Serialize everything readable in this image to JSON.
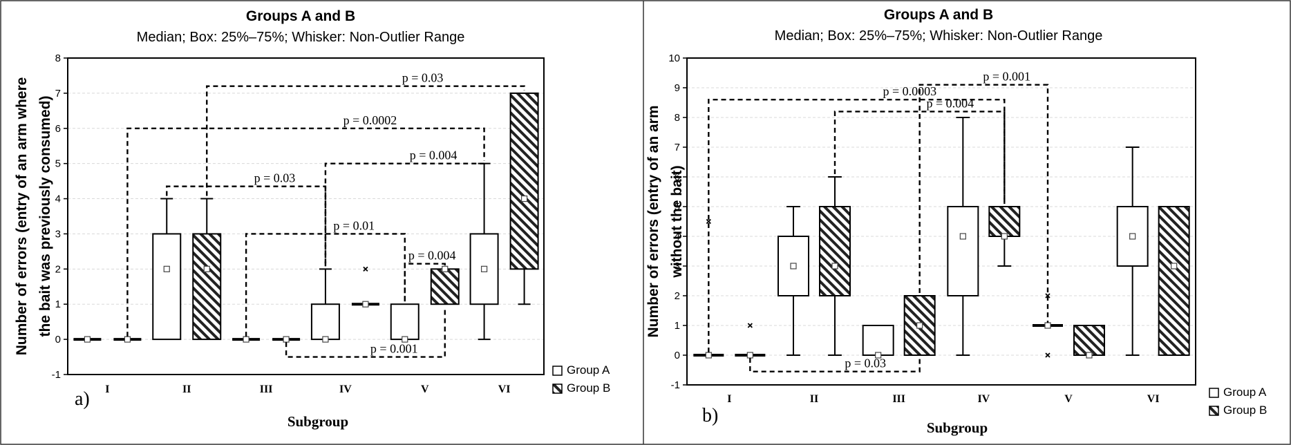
{
  "chart_data": [
    {
      "type": "box",
      "panel_label": "a)",
      "title": "Groups A and B",
      "subtitle": "Median; Box: 25%–75%; Whisker: Non-Outlier Range",
      "xlabel": "Subgroup",
      "ylabel_lines": [
        "Number of errors (entry of an arm where",
        "the bait was previously consumed)"
      ],
      "ylim": [
        -1,
        8
      ],
      "yticks": [
        -1,
        0,
        1,
        2,
        3,
        4,
        5,
        6,
        7,
        8
      ],
      "categories": [
        "I",
        "II",
        "III",
        "IV",
        "V",
        "VI"
      ],
      "grid": true,
      "legend_position": "bottom-right",
      "series": [
        {
          "name": "Group  A",
          "pattern": "plain",
          "boxes": [
            {
              "median": 0,
              "q1": 0,
              "q3": 0,
              "min": 0,
              "max": 0,
              "outliers": []
            },
            {
              "median": 2,
              "q1": 0,
              "q3": 3,
              "min": 0,
              "max": 4,
              "outliers": []
            },
            {
              "median": 0,
              "q1": 0,
              "q3": 0,
              "min": 0,
              "max": 0,
              "outliers": []
            },
            {
              "median": 0,
              "q1": 0,
              "q3": 1,
              "min": 0,
              "max": 2,
              "outliers": []
            },
            {
              "median": 0,
              "q1": 0,
              "q3": 1,
              "min": 0,
              "max": 1,
              "outliers": []
            },
            {
              "median": 2,
              "q1": 1,
              "q3": 3,
              "min": 0,
              "max": 5,
              "outliers": []
            }
          ]
        },
        {
          "name": "Group B",
          "pattern": "hatched",
          "boxes": [
            {
              "median": 0,
              "q1": 0,
              "q3": 0,
              "min": 0,
              "max": 0,
              "outliers": []
            },
            {
              "median": 2,
              "q1": 0,
              "q3": 3,
              "min": 0,
              "max": 4,
              "outliers": []
            },
            {
              "median": 0,
              "q1": 0,
              "q3": 0,
              "min": 0,
              "max": 0,
              "outliers": []
            },
            {
              "median": 1,
              "q1": 1,
              "q3": 1,
              "min": 1,
              "max": 1,
              "outliers": [
                2
              ]
            },
            {
              "median": 2,
              "q1": 1,
              "q3": 2,
              "min": 1,
              "max": 2,
              "outliers": []
            },
            {
              "median": 4,
              "q1": 2,
              "q3": 7,
              "min": 1,
              "max": 7,
              "outliers": []
            }
          ]
        }
      ],
      "annotations": [
        {
          "text": "p = 0.03",
          "from": [
            "II",
            "B"
          ],
          "to": [
            "VI",
            "B"
          ],
          "level": 7.2
        },
        {
          "text": "p = 0.0002",
          "from": [
            "I",
            "B"
          ],
          "to": [
            "VI",
            "A"
          ],
          "level": 6.0
        },
        {
          "text": "p = 0.004",
          "from": [
            "IV",
            "A"
          ],
          "to": [
            "VI",
            "A"
          ],
          "level": 5.0
        },
        {
          "text": "p = 0.03",
          "from": [
            "II",
            "A"
          ],
          "to": [
            "IV",
            "A"
          ],
          "level": 4.35
        },
        {
          "text": "p = 0.01",
          "from": [
            "III",
            "A"
          ],
          "to": [
            "V",
            "A"
          ],
          "level": 3.0
        },
        {
          "text": "p = 0.004",
          "from": [
            "V",
            "A"
          ],
          "to": [
            "V",
            "B"
          ],
          "level": 2.15
        },
        {
          "text": "p = 0.001",
          "from": [
            "III",
            "B"
          ],
          "to": [
            "V",
            "B"
          ],
          "level": -0.5
        }
      ]
    },
    {
      "type": "box",
      "panel_label": "b)",
      "title": "Groups A and B",
      "subtitle": "Median; Box: 25%–75%; Whisker: Non-Outlier Range",
      "xlabel": "Subgroup",
      "ylabel_lines": [
        "Number of errors (entry of an arm",
        "without the bait)"
      ],
      "ylim": [
        -1,
        10
      ],
      "yticks": [
        -1,
        0,
        1,
        2,
        3,
        4,
        5,
        6,
        7,
        8,
        9,
        10
      ],
      "categories": [
        "I",
        "II",
        "III",
        "IV",
        "V",
        "VI"
      ],
      "grid": true,
      "legend_position": "bottom-right",
      "series": [
        {
          "name": "Group A",
          "pattern": "plain",
          "boxes": [
            {
              "median": 0,
              "q1": 0,
              "q3": 0,
              "min": 0,
              "max": 0,
              "outliers": [
                4.5
              ]
            },
            {
              "median": 3,
              "q1": 2,
              "q3": 4,
              "min": 0,
              "max": 5,
              "outliers": []
            },
            {
              "median": 0,
              "q1": 0,
              "q3": 1,
              "min": 0,
              "max": 1,
              "outliers": []
            },
            {
              "median": 4,
              "q1": 2,
              "q3": 5,
              "min": 0,
              "max": 8,
              "outliers": []
            },
            {
              "median": 1,
              "q1": 1,
              "q3": 1,
              "min": 1,
              "max": 1,
              "outliers": [
                0,
                2
              ]
            },
            {
              "median": 4,
              "q1": 3,
              "q3": 5,
              "min": 0,
              "max": 7,
              "outliers": []
            }
          ]
        },
        {
          "name": "Group B",
          "pattern": "hatched",
          "boxes": [
            {
              "median": 0,
              "q1": 0,
              "q3": 0,
              "min": 0,
              "max": 0,
              "outliers": [
                1
              ]
            },
            {
              "median": 3,
              "q1": 2,
              "q3": 5,
              "min": 0,
              "max": 6,
              "outliers": []
            },
            {
              "median": 1,
              "q1": 0,
              "q3": 2,
              "min": 0,
              "max": 2,
              "outliers": []
            },
            {
              "median": 4,
              "q1": 4,
              "q3": 5,
              "min": 3,
              "max": 5,
              "outliers": []
            },
            {
              "median": 0,
              "q1": 0,
              "q3": 1,
              "min": 0,
              "max": 1,
              "outliers": []
            },
            {
              "median": 3,
              "q1": 0,
              "q3": 5,
              "min": 0,
              "max": 5,
              "outliers": []
            }
          ]
        }
      ],
      "annotations": [
        {
          "text": "p = 0.001",
          "from": [
            "III",
            "B"
          ],
          "to": [
            "V",
            "A"
          ],
          "level": 9.1
        },
        {
          "text": "p = 0.0003",
          "from": [
            "I",
            "A"
          ],
          "to": [
            "IV",
            "B"
          ],
          "level": 8.6
        },
        {
          "text": "p = 0.004",
          "from": [
            "II",
            "B"
          ],
          "to": [
            "IV",
            "B"
          ],
          "level": 8.2
        },
        {
          "text": "p = 0.03",
          "from": [
            "I",
            "B"
          ],
          "to": [
            "III",
            "B"
          ],
          "level": -0.55
        }
      ]
    }
  ]
}
